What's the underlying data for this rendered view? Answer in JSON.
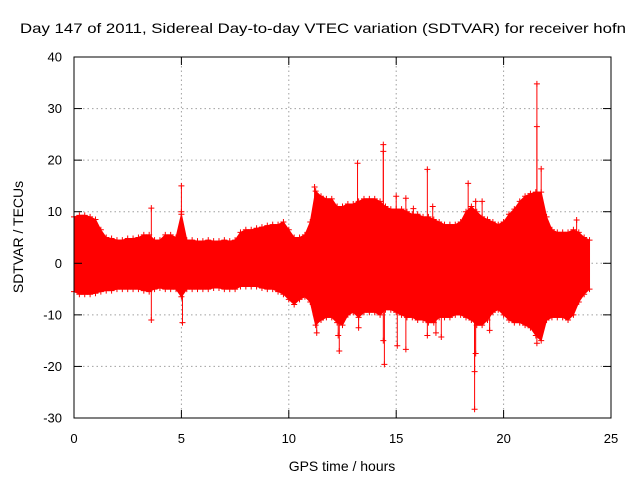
{
  "chart_data": {
    "type": "scatter",
    "title": "Day 147 of 2011, Sidereal Day-to-day VTEC variation (SDTVAR) for receiver hofn",
    "xlabel": "GPS time / hours",
    "ylabel": "SDTVAR / TECUs",
    "xlim": [
      0,
      25
    ],
    "ylim": [
      -30,
      40
    ],
    "xticks": [
      0,
      5,
      10,
      15,
      20,
      25
    ],
    "xtick_labels": [
      "0",
      "5",
      "10",
      "15",
      "20",
      "25"
    ],
    "yticks": [
      -30,
      -20,
      -10,
      0,
      10,
      20,
      30,
      40
    ],
    "ytick_labels": [
      "-30",
      "-20",
      "-10",
      "0",
      "10",
      "20",
      "30",
      "40"
    ],
    "grid": true,
    "series": [
      {
        "color": "#ff0000",
        "x": [
          0,
          0.25,
          0.5,
          0.75,
          1,
          1.25,
          1.5,
          1.75,
          2,
          2.25,
          2.5,
          2.75,
          3,
          3.25,
          3.5,
          3.75,
          4,
          4.25,
          4.5,
          4.75,
          5,
          5.25,
          5.5,
          5.75,
          6,
          6.25,
          6.5,
          6.75,
          7,
          7.25,
          7.5,
          7.75,
          8,
          8.25,
          8.5,
          8.75,
          9,
          9.25,
          9.5,
          9.75,
          10,
          10.25,
          10.5,
          10.75,
          11,
          11.25,
          11.5,
          11.75,
          12,
          12.25,
          12.5,
          12.75,
          13,
          13.25,
          13.5,
          13.75,
          14,
          14.25,
          14.5,
          14.75,
          15,
          15.25,
          15.5,
          15.75,
          16,
          16.25,
          16.5,
          16.75,
          17,
          17.25,
          17.5,
          17.75,
          18,
          18.25,
          18.5,
          18.75,
          19,
          19.25,
          19.5,
          19.75,
          20,
          20.25,
          20.5,
          20.75,
          21,
          21.25,
          21.5,
          21.75,
          22,
          22.25,
          22.5,
          22.75,
          23,
          23.25,
          23.5,
          23.75,
          24
        ],
        "max": [
          9.0,
          9.3,
          9.3,
          9.0,
          8.5,
          6.5,
          5.0,
          4.8,
          4.5,
          4.5,
          4.8,
          4.8,
          5.0,
          5.5,
          5.5,
          4.5,
          4.5,
          5.5,
          5.5,
          5.0,
          9.5,
          4.5,
          4.5,
          4.3,
          4.3,
          4.5,
          4.3,
          4.3,
          4.5,
          4.3,
          4.5,
          6.0,
          6.5,
          6.5,
          6.8,
          7.0,
          7.3,
          7.5,
          7.5,
          8.0,
          6.5,
          5.0,
          5.0,
          5.5,
          8.0,
          14.0,
          13.0,
          12.5,
          12.5,
          11.0,
          11.0,
          11.5,
          11.5,
          12.0,
          12.5,
          12.5,
          12.5,
          12.0,
          11.0,
          10.5,
          10.5,
          10.5,
          10.0,
          9.5,
          9.5,
          9.0,
          9.0,
          8.5,
          8.0,
          7.5,
          7.5,
          7.5,
          8.0,
          10.0,
          11.0,
          10.0,
          9.0,
          8.5,
          8.0,
          7.5,
          8.0,
          9.5,
          10.5,
          12.0,
          13.0,
          13.5,
          13.8,
          13.8,
          9.0,
          6.5,
          6.0,
          6.0,
          6.0,
          6.5,
          6.0,
          5.0,
          4.5
        ],
        "min": [
          -5.5,
          -6.0,
          -6.0,
          -6.0,
          -5.8,
          -5.5,
          -5.3,
          -5.3,
          -5.0,
          -5.0,
          -5.0,
          -5.0,
          -5.0,
          -5.3,
          -5.5,
          -5.0,
          -4.8,
          -5.0,
          -5.0,
          -5.0,
          -6.5,
          -5.0,
          -5.0,
          -5.0,
          -5.0,
          -5.0,
          -4.8,
          -4.8,
          -5.0,
          -5.0,
          -5.0,
          -4.5,
          -4.5,
          -4.5,
          -4.5,
          -4.8,
          -5.0,
          -5.0,
          -5.5,
          -6.0,
          -7.0,
          -8.0,
          -7.0,
          -6.5,
          -7.5,
          -12.0,
          -11.0,
          -10.5,
          -10.5,
          -11.5,
          -12.0,
          -10.0,
          -9.5,
          -10.5,
          -9.5,
          -9.5,
          -9.5,
          -10.0,
          -9.0,
          -9.0,
          -9.5,
          -10.0,
          -10.5,
          -10.5,
          -11.0,
          -11.0,
          -11.5,
          -11.5,
          -10.5,
          -10.5,
          -10.5,
          -10.0,
          -10.0,
          -10.5,
          -11.0,
          -12.0,
          -12.0,
          -11.0,
          -9.5,
          -9.0,
          -10.0,
          -11.0,
          -11.5,
          -11.5,
          -12.0,
          -12.5,
          -14.0,
          -15.0,
          -11.0,
          -10.5,
          -10.5,
          -10.5,
          -11.0,
          -10.0,
          -7.5,
          -6.0,
          -5.0
        ],
        "outliers": [
          {
            "x": 3.6,
            "y": 10.7
          },
          {
            "x": 3.6,
            "y": -11.0
          },
          {
            "x": 5.0,
            "y": 15.0
          },
          {
            "x": 5.0,
            "y": 10.0
          },
          {
            "x": 5.05,
            "y": -11.5
          },
          {
            "x": 11.2,
            "y": 14.8
          },
          {
            "x": 11.3,
            "y": -13.5
          },
          {
            "x": 12.35,
            "y": -17.0
          },
          {
            "x": 12.3,
            "y": -14.0
          },
          {
            "x": 13.2,
            "y": 19.4
          },
          {
            "x": 13.25,
            "y": -12.5
          },
          {
            "x": 14.4,
            "y": 23.0
          },
          {
            "x": 14.4,
            "y": 21.7
          },
          {
            "x": 14.45,
            "y": -19.6
          },
          {
            "x": 14.4,
            "y": -15.0
          },
          {
            "x": 15.0,
            "y": 13.0
          },
          {
            "x": 15.05,
            "y": -16.0
          },
          {
            "x": 15.45,
            "y": 12.6
          },
          {
            "x": 15.45,
            "y": -16.7
          },
          {
            "x": 15.8,
            "y": 10.6
          },
          {
            "x": 16.45,
            "y": 18.2
          },
          {
            "x": 16.45,
            "y": -14.0
          },
          {
            "x": 16.7,
            "y": 11.0
          },
          {
            "x": 16.85,
            "y": -13.5
          },
          {
            "x": 17.1,
            "y": -14.3
          },
          {
            "x": 18.35,
            "y": 15.5
          },
          {
            "x": 18.7,
            "y": 12.0
          },
          {
            "x": 18.65,
            "y": -28.3
          },
          {
            "x": 18.65,
            "y": -21.0
          },
          {
            "x": 18.7,
            "y": -17.5
          },
          {
            "x": 19.0,
            "y": 12.0
          },
          {
            "x": 19.35,
            "y": -13.0
          },
          {
            "x": 21.55,
            "y": 34.8
          },
          {
            "x": 21.55,
            "y": 26.5
          },
          {
            "x": 21.75,
            "y": 18.3
          },
          {
            "x": 21.55,
            "y": -15.5
          },
          {
            "x": 23.4,
            "y": 8.4
          }
        ]
      }
    ]
  },
  "colors": {
    "series": "#ff0000",
    "grid": "#a0a0a0",
    "axis": "#000000",
    "text": "#000000",
    "background": "#ffffff"
  }
}
